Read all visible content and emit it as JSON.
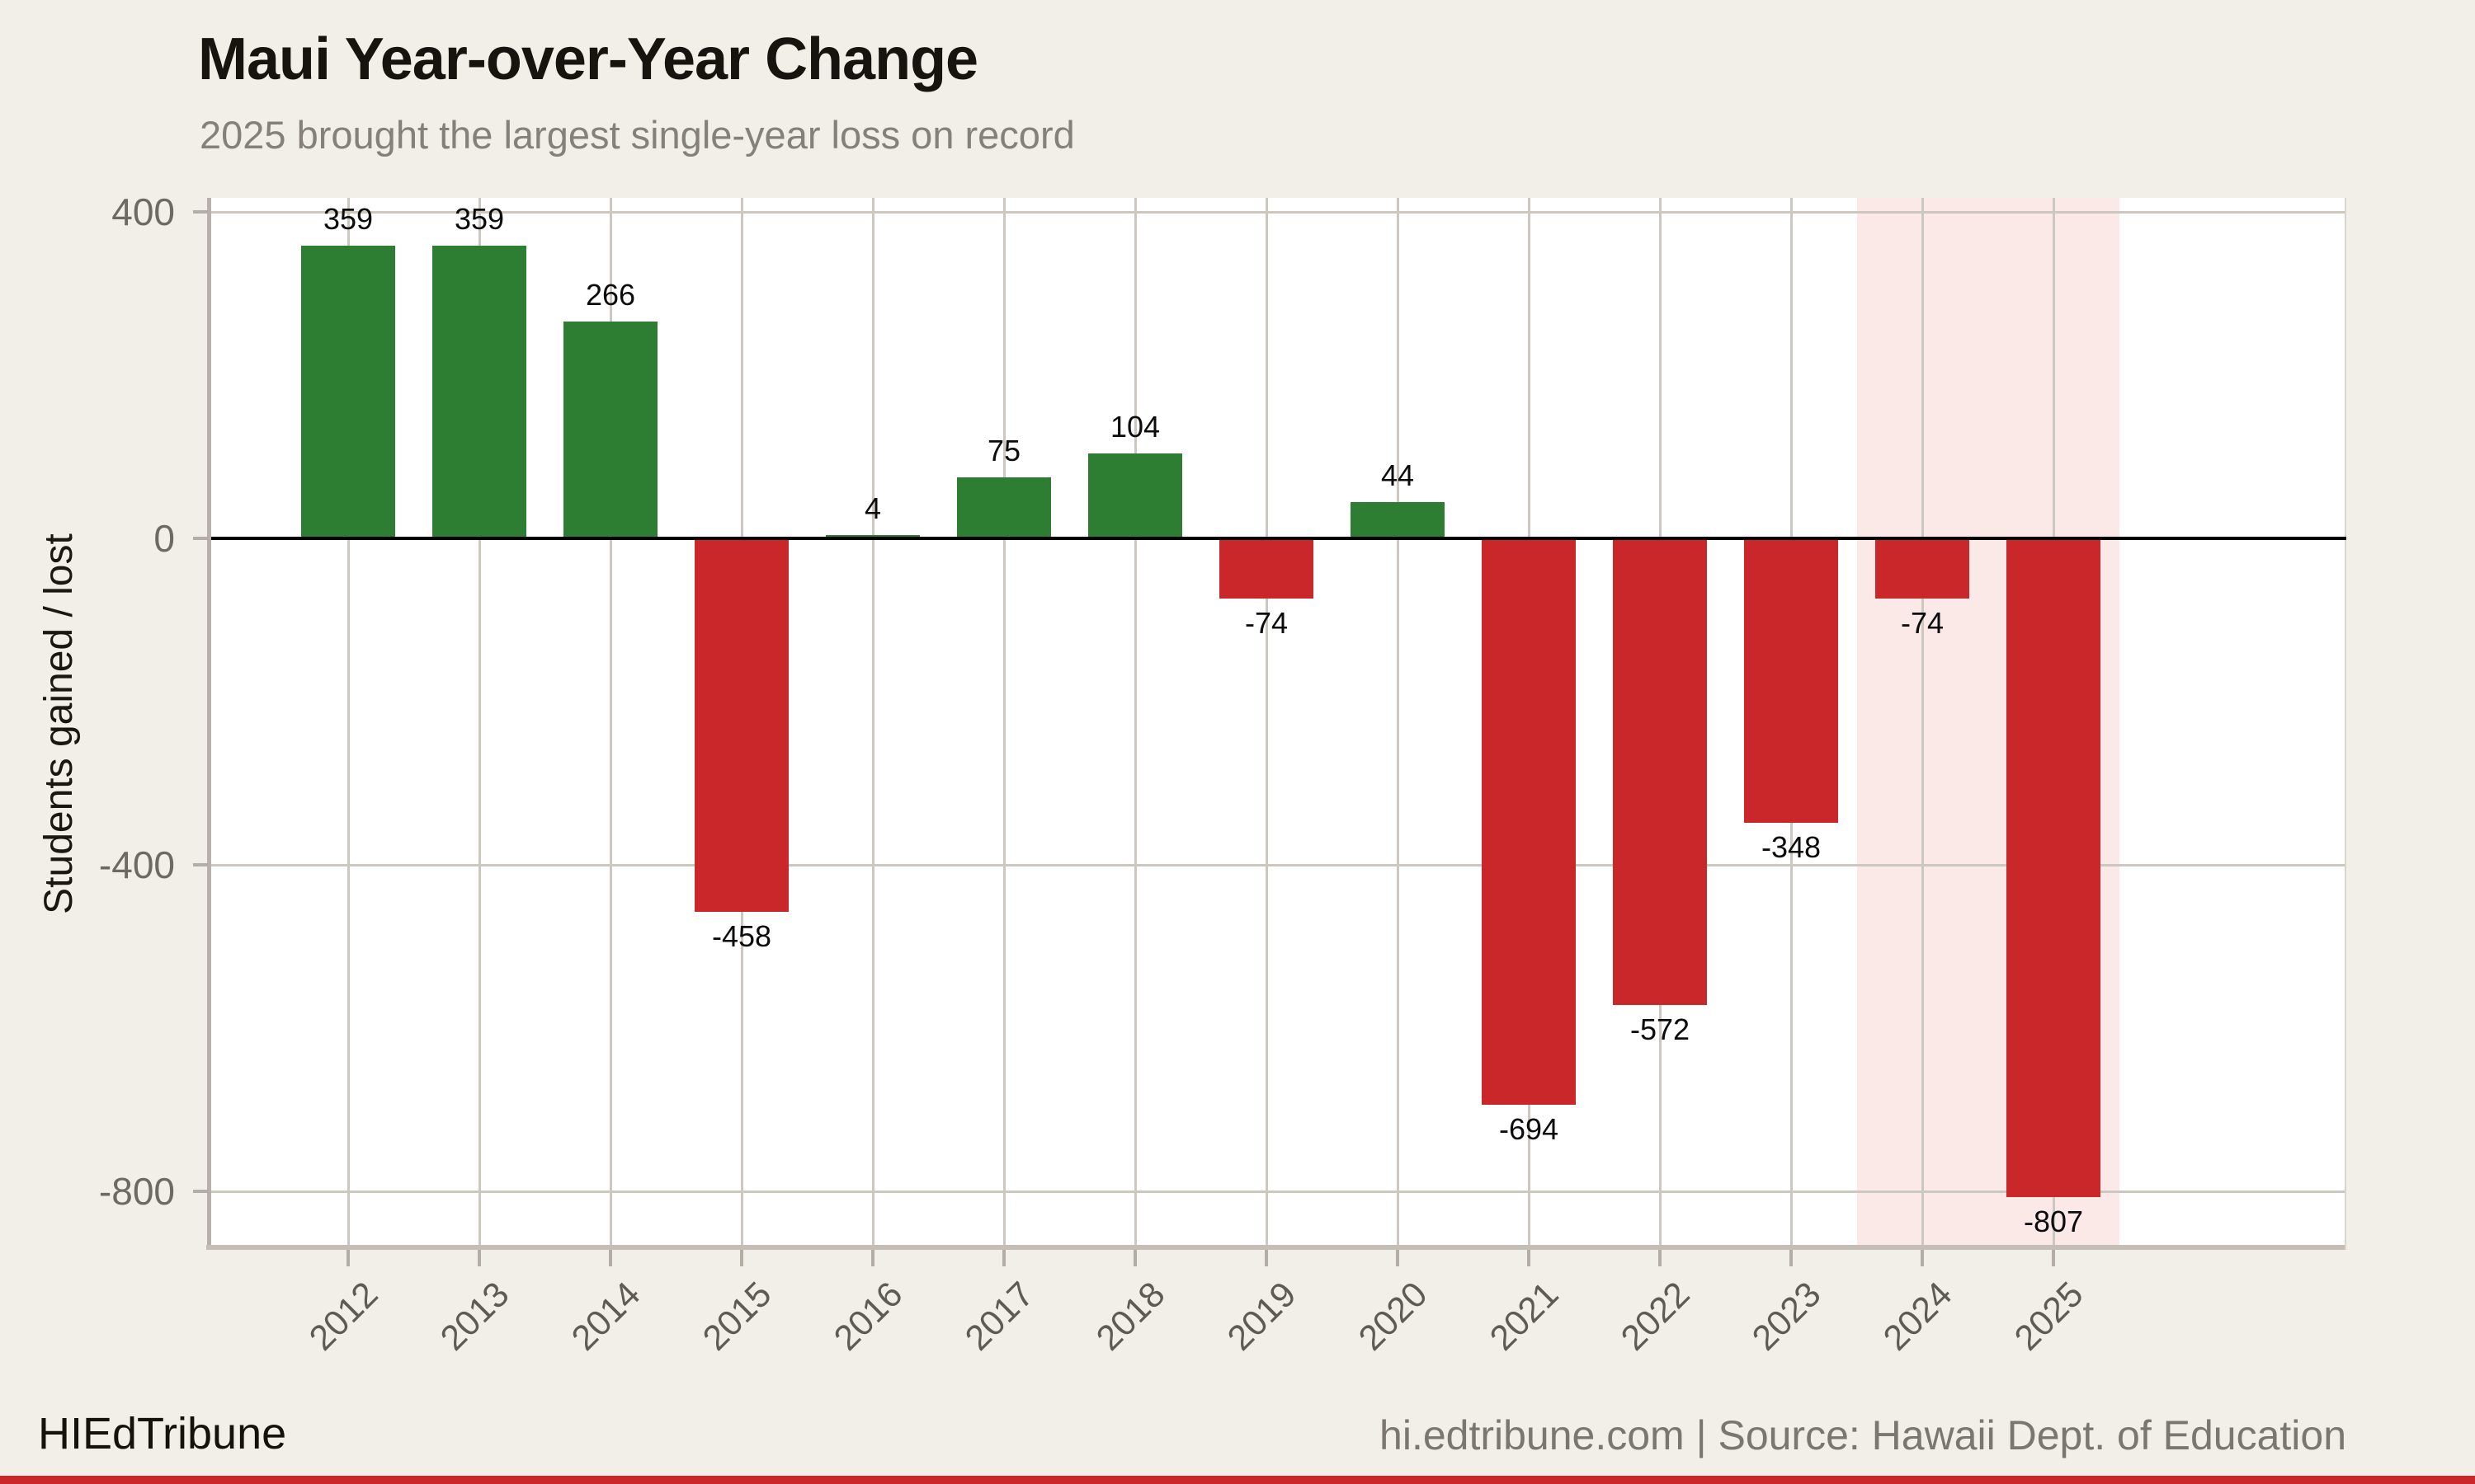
{
  "header": {
    "title": "Maui Year-over-Year Change",
    "subtitle": "2025 brought the largest single-year loss on record"
  },
  "chart_data": {
    "type": "bar",
    "title": "Maui Year-over-Year Change",
    "subtitle": "2025 brought the largest single-year loss on record",
    "categories": [
      "2012",
      "2013",
      "2014",
      "2015",
      "2016",
      "2017",
      "2018",
      "2019",
      "2020",
      "2021",
      "2022",
      "2023",
      "2024",
      "2025"
    ],
    "values": [
      359,
      359,
      266,
      -458,
      4,
      75,
      104,
      -74,
      44,
      -694,
      -572,
      -348,
      -74,
      -807
    ],
    "xlabel": "",
    "ylabel": "Students gained / lost",
    "yticks": [
      400,
      0,
      -400,
      -800
    ],
    "ylim": [
      -870,
      420
    ],
    "grid": true,
    "legend": false,
    "colors": {
      "bar_positive": "#2d7d33",
      "bar_negative": "#c9272a",
      "highlight_band": "#fae9e6",
      "zero_line": "#000000",
      "gridline": "#ccc7bf",
      "axis_line": "#b7b1a9",
      "tick_mark": "#b3ada5",
      "plot_bg": "#ffffff",
      "page_bg": "#f2efe8",
      "value_label": "#0c0c0c",
      "tick_label": "#6e6963",
      "year_label": "#5f5a55"
    },
    "highlight_categories": [
      "2024",
      "2025"
    ]
  },
  "footer": {
    "brand": "HIEdTribune",
    "attribution": "hi.edtribune.com | Source: Hawaii Dept. of Education"
  }
}
